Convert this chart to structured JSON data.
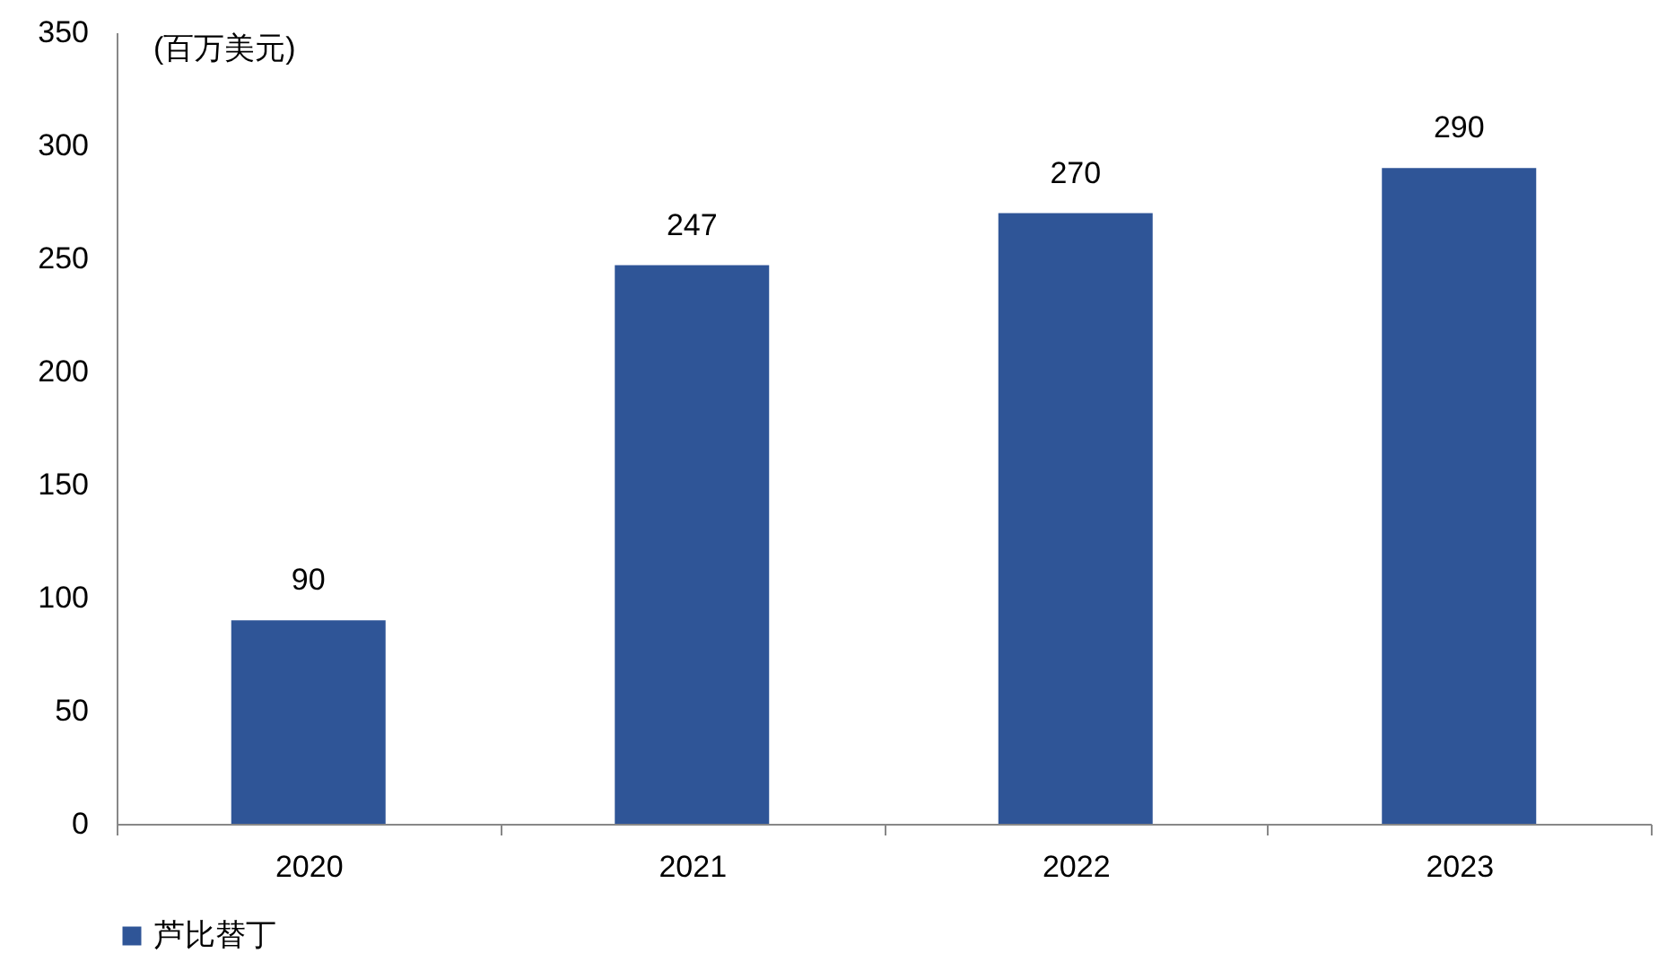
{
  "chart_data": {
    "type": "bar",
    "ylabel": "(百万美元)",
    "categories": [
      "2020",
      "2021",
      "2022",
      "2023"
    ],
    "series": [
      {
        "name": "芦比替丁",
        "color": "#2f5597",
        "values": [
          90,
          247,
          270,
          290
        ]
      }
    ],
    "ylim": [
      0,
      350
    ],
    "yticks": [
      0,
      50,
      100,
      150,
      200,
      250,
      300,
      350
    ],
    "data_labels": true,
    "legend": "bottom",
    "grid": false
  }
}
